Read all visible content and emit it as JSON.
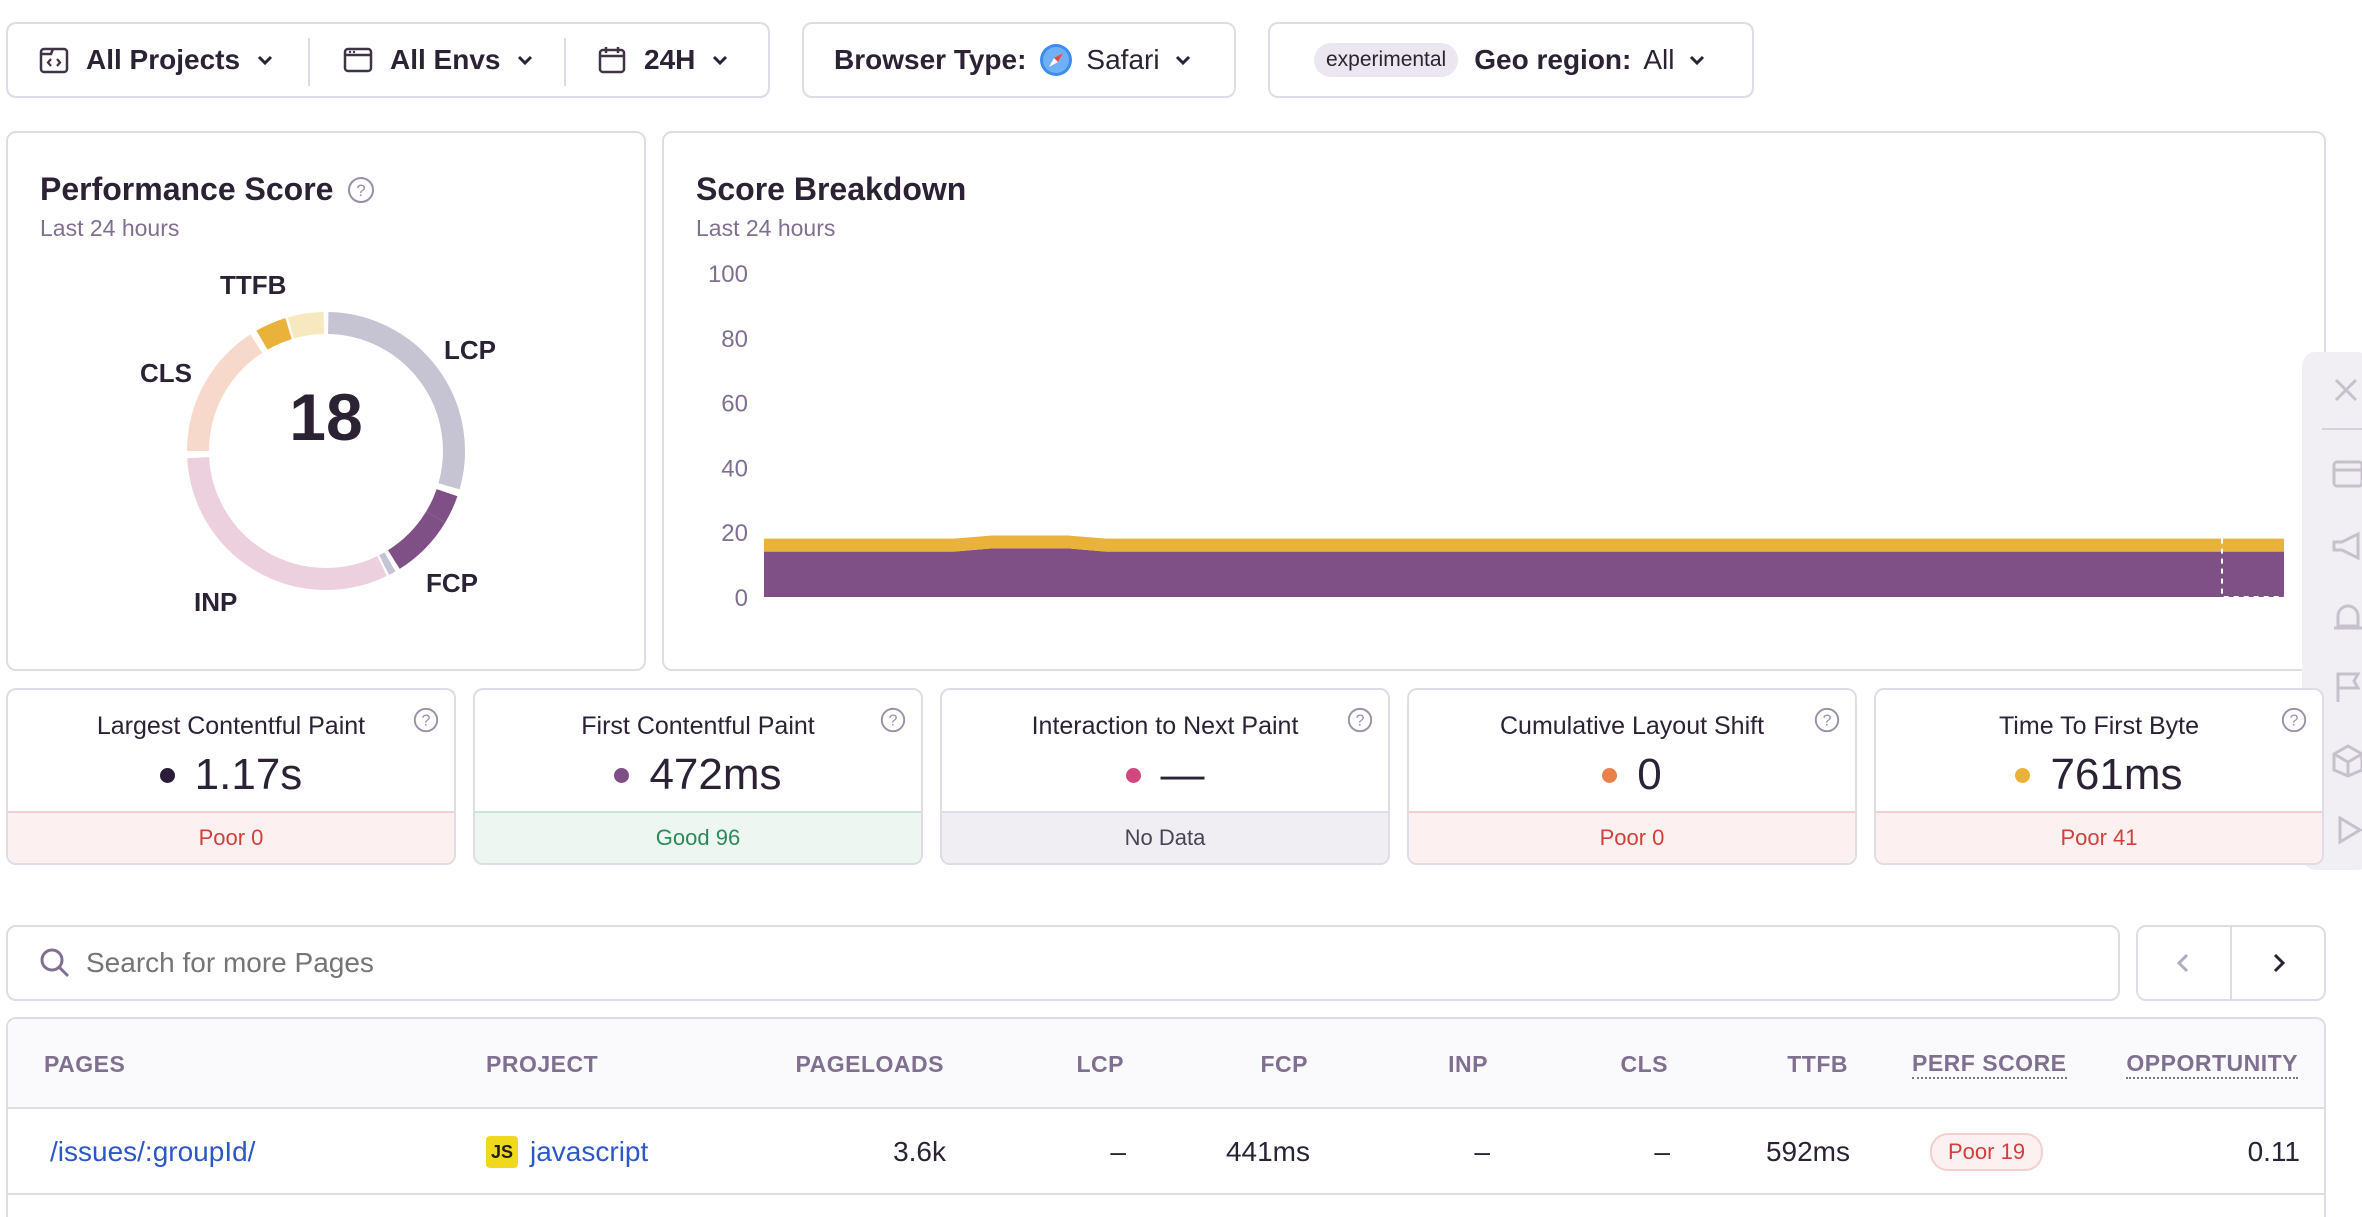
{
  "filters": {
    "projects": "All Projects",
    "envs": "All Envs",
    "period": "24H",
    "browser_label": "Browser Type:",
    "browser_value": "Safari",
    "experimental_badge": "experimental",
    "geo_label": "Geo region:",
    "geo_value": "All"
  },
  "performance_score": {
    "title": "Performance Score",
    "subtitle": "Last 24 hours",
    "score": "18",
    "ring_labels": {
      "lcp": "LCP",
      "fcp": "FCP",
      "inp": "INP",
      "cls": "CLS",
      "ttfb": "TTFB"
    }
  },
  "score_breakdown": {
    "title": "Score Breakdown",
    "subtitle": "Last 24 hours"
  },
  "chart_data": {
    "type": "area",
    "title": "Score Breakdown",
    "subtitle": "Last 24 hours",
    "ylim": [
      0,
      100
    ],
    "yticks": [
      "100",
      "80",
      "60",
      "40",
      "20",
      "0"
    ],
    "grid": false,
    "stacked": true,
    "series": [
      {
        "color": "#7e5086",
        "values": [
          14,
          14,
          14,
          14,
          14,
          14,
          15,
          15,
          15,
          14,
          14,
          14,
          14,
          14,
          14,
          14,
          14,
          14,
          14,
          14,
          14,
          14,
          14,
          14,
          14,
          14,
          14,
          14,
          14,
          14,
          14,
          14,
          14,
          14,
          14,
          14,
          14,
          14,
          14,
          14,
          14
        ]
      },
      {
        "color": "#e8b23b",
        "values": [
          4,
          4,
          4,
          4,
          4,
          4,
          4,
          4,
          4,
          4,
          4,
          4,
          4,
          4,
          4,
          4,
          4,
          4,
          4,
          4,
          4,
          4,
          4,
          4,
          4,
          4,
          4,
          4,
          4,
          4,
          4,
          4,
          4,
          4,
          4,
          4,
          4,
          4,
          4,
          4,
          4
        ]
      }
    ],
    "totals_note_shown": false
  },
  "metrics": [
    {
      "name": "Largest Contentful Paint",
      "value": "1.17s",
      "color": "#2b1d38",
      "status": "Poor 0",
      "status_type": "poor"
    },
    {
      "name": "First Contentful Paint",
      "value": "472ms",
      "color": "#7e5086",
      "status": "Good 96",
      "status_type": "good"
    },
    {
      "name": "Interaction to Next Paint",
      "value": "—",
      "color": "#d1477e",
      "status": "No Data",
      "status_type": "nodata"
    },
    {
      "name": "Cumulative Layout Shift",
      "value": "0",
      "color": "#e9814b",
      "status": "Poor 0",
      "status_type": "poor"
    },
    {
      "name": "Time To First Byte",
      "value": "761ms",
      "color": "#e8b23b",
      "status": "Poor 41",
      "status_type": "poor"
    }
  ],
  "search": {
    "placeholder": "Search for more Pages"
  },
  "table": {
    "headers": {
      "pages": "PAGES",
      "project": "PROJECT",
      "pageloads": "PAGELOADS",
      "lcp": "LCP",
      "fcp": "FCP",
      "inp": "INP",
      "cls": "CLS",
      "ttfb": "TTFB",
      "perf_score": "PERF SCORE",
      "opportunity": "OPPORTUNITY"
    },
    "rows": [
      {
        "page": "/issues/:groupId/",
        "project_badge": "JS",
        "project": "javascript",
        "pageloads": "3.6k",
        "lcp": "–",
        "fcp": "441ms",
        "inp": "–",
        "cls": "–",
        "ttfb": "592ms",
        "perf_score": "Poor 19",
        "opportunity": "0.11"
      }
    ]
  },
  "colors": {
    "lcp": "#c6c3d2",
    "fcp": "#7e5086",
    "inp": "#ecd0dd",
    "cls": "#f7d9cb",
    "ttfb": "#e8b23b",
    "ttfb_light": "#f7e9bf"
  }
}
